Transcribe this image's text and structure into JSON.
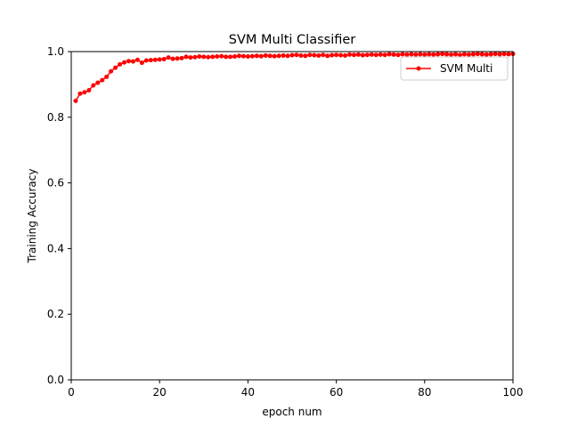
{
  "chart_data": {
    "type": "line",
    "title": "SVM Multi Classifier",
    "xlabel": "epoch num",
    "ylabel": "Training Accuracy",
    "xlim": [
      0,
      100
    ],
    "ylim": [
      0,
      1
    ],
    "xticks": [
      0,
      20,
      40,
      60,
      80,
      100
    ],
    "yticks": [
      0.0,
      0.2,
      0.4,
      0.6,
      0.8,
      1.0
    ],
    "xtick_labels": [
      "0",
      "20",
      "40",
      "60",
      "80",
      "100"
    ],
    "ytick_labels": [
      "0.0",
      "0.2",
      "0.4",
      "0.6",
      "0.8",
      "1.0"
    ],
    "grid": false,
    "legend_position": "top-right",
    "series": [
      {
        "name": "SVM Multi",
        "color": "#ff0000",
        "marker": "dot",
        "x": [
          1,
          2,
          3,
          4,
          5,
          6,
          7,
          8,
          9,
          10,
          11,
          12,
          13,
          14,
          15,
          16,
          17,
          18,
          19,
          20,
          21,
          22,
          23,
          24,
          25,
          26,
          27,
          28,
          29,
          30,
          31,
          32,
          33,
          34,
          35,
          36,
          37,
          38,
          39,
          40,
          41,
          42,
          43,
          44,
          45,
          46,
          47,
          48,
          49,
          50,
          51,
          52,
          53,
          54,
          55,
          56,
          57,
          58,
          59,
          60,
          61,
          62,
          63,
          64,
          65,
          66,
          67,
          68,
          69,
          70,
          71,
          72,
          73,
          74,
          75,
          76,
          77,
          78,
          79,
          80,
          81,
          82,
          83,
          84,
          85,
          86,
          87,
          88,
          89,
          90,
          91,
          92,
          93,
          94,
          95,
          96,
          97,
          98,
          99,
          100
        ],
        "y": [
          0.85,
          0.872,
          0.876,
          0.882,
          0.897,
          0.905,
          0.913,
          0.923,
          0.94,
          0.951,
          0.961,
          0.967,
          0.971,
          0.97,
          0.975,
          0.966,
          0.973,
          0.974,
          0.975,
          0.976,
          0.977,
          0.982,
          0.978,
          0.979,
          0.98,
          0.984,
          0.982,
          0.983,
          0.985,
          0.984,
          0.983,
          0.984,
          0.985,
          0.986,
          0.984,
          0.984,
          0.985,
          0.987,
          0.986,
          0.985,
          0.986,
          0.987,
          0.986,
          0.988,
          0.987,
          0.986,
          0.987,
          0.988,
          0.987,
          0.989,
          0.99,
          0.988,
          0.987,
          0.99,
          0.989,
          0.988,
          0.99,
          0.987,
          0.989,
          0.99,
          0.989,
          0.988,
          0.991,
          0.99,
          0.991,
          0.989,
          0.99,
          0.991,
          0.99,
          0.991,
          0.99,
          0.992,
          0.991,
          0.99,
          0.992,
          0.991,
          0.992,
          0.991,
          0.992,
          0.991,
          0.992,
          0.991,
          0.992,
          0.993,
          0.992,
          0.991,
          0.992,
          0.99,
          0.992,
          0.991,
          0.992,
          0.993,
          0.992,
          0.991,
          0.992,
          0.993,
          0.992,
          0.993,
          0.992,
          0.993
        ]
      }
    ]
  }
}
